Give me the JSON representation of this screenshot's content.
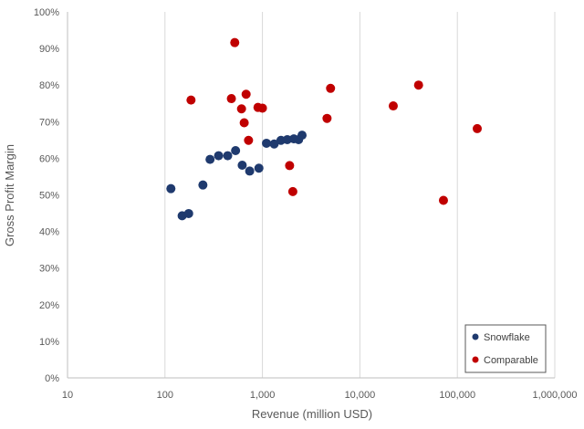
{
  "chart_data": {
    "type": "scatter",
    "title": "",
    "xlabel": "Revenue (million USD)",
    "ylabel": "Gross Profit Margin",
    "x_scale": "log",
    "xlim": [
      10,
      1000000
    ],
    "ylim": [
      0,
      1
    ],
    "x_ticks": [
      10,
      100,
      1000,
      10000,
      100000,
      1000000
    ],
    "x_tick_labels": [
      "10",
      "100",
      "1,000",
      "10,000",
      "100,000",
      "1,000,000"
    ],
    "y_ticks": [
      0,
      0.1,
      0.2,
      0.3,
      0.4,
      0.5,
      0.6,
      0.7,
      0.8,
      0.9,
      1.0
    ],
    "y_tick_labels": [
      "0%",
      "10%",
      "20%",
      "30%",
      "40%",
      "50%",
      "60%",
      "70%",
      "80%",
      "90%",
      "100%"
    ],
    "grid": "vertical",
    "legend": "bottom-right",
    "series": [
      {
        "name": "Snowflake",
        "color": "#1f3a6e",
        "points": [
          {
            "x": 115,
            "y": 0.517
          },
          {
            "x": 150,
            "y": 0.443
          },
          {
            "x": 175,
            "y": 0.449
          },
          {
            "x": 245,
            "y": 0.527
          },
          {
            "x": 290,
            "y": 0.597
          },
          {
            "x": 355,
            "y": 0.607
          },
          {
            "x": 440,
            "y": 0.607
          },
          {
            "x": 530,
            "y": 0.621
          },
          {
            "x": 620,
            "y": 0.581
          },
          {
            "x": 740,
            "y": 0.565
          },
          {
            "x": 920,
            "y": 0.573
          },
          {
            "x": 1100,
            "y": 0.641
          },
          {
            "x": 1320,
            "y": 0.639
          },
          {
            "x": 1550,
            "y": 0.649
          },
          {
            "x": 1800,
            "y": 0.651
          },
          {
            "x": 2100,
            "y": 0.653
          },
          {
            "x": 2350,
            "y": 0.651
          },
          {
            "x": 2550,
            "y": 0.663
          }
        ]
      },
      {
        "name": "Comparable",
        "color": "#c00000",
        "points": [
          {
            "x": 185,
            "y": 0.759
          },
          {
            "x": 480,
            "y": 0.763
          },
          {
            "x": 520,
            "y": 0.916
          },
          {
            "x": 610,
            "y": 0.735
          },
          {
            "x": 650,
            "y": 0.697
          },
          {
            "x": 680,
            "y": 0.775
          },
          {
            "x": 720,
            "y": 0.649
          },
          {
            "x": 900,
            "y": 0.739
          },
          {
            "x": 1000,
            "y": 0.737
          },
          {
            "x": 1900,
            "y": 0.58
          },
          {
            "x": 2050,
            "y": 0.509
          },
          {
            "x": 4600,
            "y": 0.709
          },
          {
            "x": 5000,
            "y": 0.791
          },
          {
            "x": 22000,
            "y": 0.743
          },
          {
            "x": 40000,
            "y": 0.8
          },
          {
            "x": 72000,
            "y": 0.485
          },
          {
            "x": 160000,
            "y": 0.681
          }
        ]
      }
    ]
  }
}
